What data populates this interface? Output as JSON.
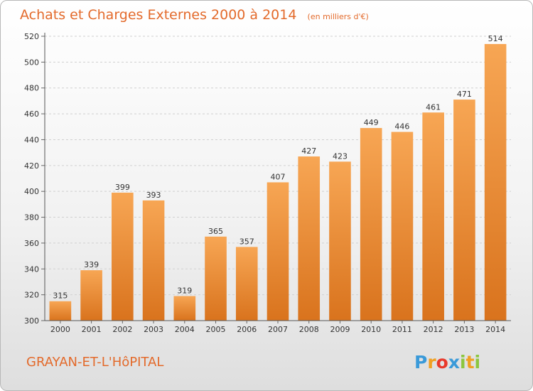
{
  "title": "Achats et Charges Externes 2000 à 2014",
  "unit": "(en milliers d'€)",
  "location": "GRAYAN-ET-L'HôPITAL",
  "brand": {
    "text": "Proxiti",
    "letters": [
      {
        "ch": "P",
        "color": "#3a9ad9"
      },
      {
        "ch": "r",
        "color": "#f0a022"
      },
      {
        "ch": "o",
        "color": "#e8392b"
      },
      {
        "ch": "x",
        "color": "#3a9ad9"
      },
      {
        "ch": "i",
        "color": "#8cc63e"
      },
      {
        "ch": "t",
        "color": "#f0a022"
      },
      {
        "ch": "i",
        "color": "#8cc63e"
      }
    ]
  },
  "colors": {
    "accent": "#e36a2b",
    "bar_top": "#f7a654",
    "bar_bottom": "#d9731d",
    "grid": "#d0d0d0"
  },
  "chart_data": {
    "type": "bar",
    "title": "Achats et Charges Externes 2000 à 2014",
    "subtitle": "(en milliers d'€)",
    "categories": [
      "2000",
      "2001",
      "2002",
      "2003",
      "2004",
      "2005",
      "2006",
      "2007",
      "2008",
      "2009",
      "2010",
      "2011",
      "2012",
      "2013",
      "2014"
    ],
    "values": [
      315,
      339,
      399,
      393,
      319,
      365,
      357,
      407,
      427,
      423,
      449,
      446,
      461,
      471,
      514
    ],
    "ylim": [
      300,
      520
    ],
    "yticks": [
      300,
      320,
      340,
      360,
      380,
      400,
      420,
      440,
      460,
      480,
      500,
      520
    ],
    "grid": true,
    "legend": "none"
  }
}
